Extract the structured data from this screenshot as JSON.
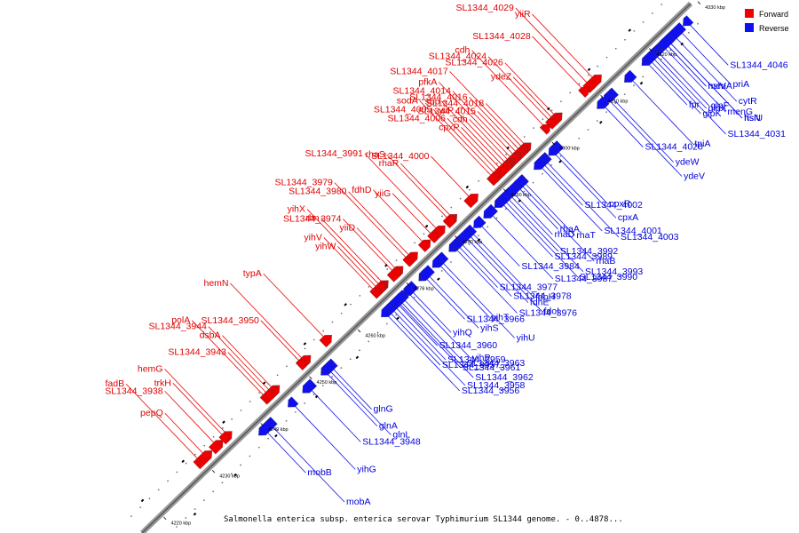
{
  "caption": "Salmonella enterica subsp. enterica serovar Typhimurium SL1344 genome. - 0..4878...",
  "legend": {
    "forward": "Forward",
    "reverse": "Reverse",
    "forward_color": "#ee0000",
    "reverse_color": "#1010ee"
  },
  "scale_labels": [
    "4220 kbp",
    "4230 kbp",
    "4240 kbp",
    "4250 kbp",
    "4260 kbp",
    "4270 kbp",
    "4280 kbp",
    "4290 kbp",
    "4300 kbp",
    "4310 kbp",
    "4320 kbp",
    "4330 kbp"
  ],
  "forward_genes": [
    {
      "name": "SL1344_4018",
      "t": 0.715
    },
    {
      "name": "SL1344_4026",
      "t": 0.77
    },
    {
      "name": "yiiR",
      "t": 0.84
    },
    {
      "name": "SL1344_4017",
      "t": 0.71
    },
    {
      "name": "ydeZ",
      "t": 0.765
    },
    {
      "name": "SL1344_4016",
      "t": 0.705
    },
    {
      "name": "SL1344_4024",
      "t": 0.76
    },
    {
      "name": "SL1344_4029",
      "t": 0.83
    },
    {
      "name": "SL1344_4015",
      "t": 0.7
    },
    {
      "name": "SL1344_4028",
      "t": 0.82
    },
    {
      "name": "SL1344_4014",
      "t": 0.695
    },
    {
      "name": "pfkA",
      "t": 0.69
    },
    {
      "name": "cdh",
      "t": 0.685
    },
    {
      "name": "yiiP",
      "t": 0.68
    },
    {
      "name": "sbp",
      "t": 0.675
    },
    {
      "name": "cdh",
      "t": 0.75
    },
    {
      "name": "cpxP",
      "t": 0.67
    },
    {
      "name": "SL1344_4006",
      "t": 0.665
    },
    {
      "name": "SL1344_4005",
      "t": 0.66
    },
    {
      "name": "sodA",
      "t": 0.655
    },
    {
      "name": "SL1344_4000",
      "t": 0.615
    },
    {
      "name": "rhaR",
      "t": 0.58
    },
    {
      "name": "rhaS",
      "t": 0.575
    },
    {
      "name": "SL1344_3991",
      "t": 0.555
    },
    {
      "name": "yiiG",
      "t": 0.545
    },
    {
      "name": "fdhD",
      "t": 0.53
    },
    {
      "name": "SL1344_3980",
      "t": 0.505
    },
    {
      "name": "SL1344_3979",
      "t": 0.5
    },
    {
      "name": "yiiD",
      "t": 0.48
    },
    {
      "name": "SL1344_3974",
      "t": 0.475
    },
    {
      "name": "rbn",
      "t": 0.455
    },
    {
      "name": "yihX",
      "t": 0.45
    },
    {
      "name": "yihW",
      "t": 0.445
    },
    {
      "name": "yihV",
      "t": 0.44
    },
    {
      "name": "typA",
      "t": 0.35
    },
    {
      "name": "hemN",
      "t": 0.31
    },
    {
      "name": "SL1344_3950",
      "t": 0.305
    },
    {
      "name": "dsbA",
      "t": 0.255
    },
    {
      "name": "SL1344_3944",
      "t": 0.25
    },
    {
      "name": "polA",
      "t": 0.24
    },
    {
      "name": "SL1344_3943",
      "t": 0.245
    },
    {
      "name": "SL1344_3938",
      "t": 0.15
    },
    {
      "name": "hemG",
      "t": 0.17
    },
    {
      "name": "fadB",
      "t": 0.12
    },
    {
      "name": "pepQ",
      "t": 0.13
    },
    {
      "name": "trkH",
      "t": 0.165
    }
  ],
  "reverse_genes": [
    {
      "name": "SL1344_4046",
      "t": 0.98
    },
    {
      "name": "priA",
      "t": 0.965
    },
    {
      "name": "cytR",
      "t": 0.955
    },
    {
      "name": "hslU",
      "t": 0.945
    },
    {
      "name": "hslV",
      "t": 0.94
    },
    {
      "name": "glpF",
      "t": 0.925
    },
    {
      "name": "menG",
      "t": 0.935
    },
    {
      "name": "ftsN",
      "t": 0.945
    },
    {
      "name": "menA",
      "t": 0.94
    },
    {
      "name": "glpX",
      "t": 0.92
    },
    {
      "name": "tpiA",
      "t": 0.875
    },
    {
      "name": "SL1344_4031",
      "t": 0.915
    },
    {
      "name": "fpr",
      "t": 0.905
    },
    {
      "name": "glpK",
      "t": 0.91
    },
    {
      "name": "ydeW",
      "t": 0.84
    },
    {
      "name": "ydeV",
      "t": 0.835
    },
    {
      "name": "SL1344_4020",
      "t": 0.825
    },
    {
      "name": "cpxR",
      "t": 0.74
    },
    {
      "name": "cpxA",
      "t": 0.735
    },
    {
      "name": "SL1344_4003",
      "t": 0.72
    },
    {
      "name": "SL1344_4002",
      "t": 0.715
    },
    {
      "name": "rhaT",
      "t": 0.68
    },
    {
      "name": "SL1344_4001",
      "t": 0.71
    },
    {
      "name": "rhaB",
      "t": 0.675
    },
    {
      "name": "rhaA",
      "t": 0.67
    },
    {
      "name": "SL1344_3992",
      "t": 0.65
    },
    {
      "name": "SL1344_3987",
      "t": 0.62
    },
    {
      "name": "SL1344_3993",
      "t": 0.655
    },
    {
      "name": "SL1344_3984",
      "t": 0.6
    },
    {
      "name": "SL1344_3989",
      "t": 0.64
    },
    {
      "name": "fdoH",
      "t": 0.585
    },
    {
      "name": "SL1344_3990",
      "t": 0.645
    },
    {
      "name": "rhaD",
      "t": 0.66
    },
    {
      "name": "SL1344_3978",
      "t": 0.565
    },
    {
      "name": "SL1344_3976",
      "t": 0.555
    },
    {
      "name": "yihU",
      "t": 0.53
    },
    {
      "name": "SL1344_3977",
      "t": 0.56
    },
    {
      "name": "yihT",
      "t": 0.525
    },
    {
      "name": "fdhE",
      "t": 0.575
    },
    {
      "name": "fdoI",
      "t": 0.58
    },
    {
      "name": "SL1344_3966",
      "t": 0.5
    },
    {
      "name": "yihS",
      "t": 0.505
    },
    {
      "name": "yihP",
      "t": 0.47
    },
    {
      "name": "SL1344_3962",
      "t": 0.455
    },
    {
      "name": "yihQ",
      "t": 0.475
    },
    {
      "name": "SL1344_3959",
      "t": 0.445
    },
    {
      "name": "SL1344_3963",
      "t": 0.46
    },
    {
      "name": "SL1344_3958",
      "t": 0.44
    },
    {
      "name": "SL1344_3960",
      "t": 0.45
    },
    {
      "name": "SL1344_3957",
      "t": 0.435
    },
    {
      "name": "SL1344_3961",
      "t": 0.452
    },
    {
      "name": "SL1344_3956",
      "t": 0.43
    },
    {
      "name": "glnG",
      "t": 0.33
    },
    {
      "name": "SL1344_3948",
      "t": 0.29
    },
    {
      "name": "yihG",
      "t": 0.26
    },
    {
      "name": "mobA",
      "t": 0.22
    },
    {
      "name": "mobB",
      "t": 0.21
    },
    {
      "name": "glnA",
      "t": 0.32
    },
    {
      "name": "glnL",
      "t": 0.325
    }
  ]
}
